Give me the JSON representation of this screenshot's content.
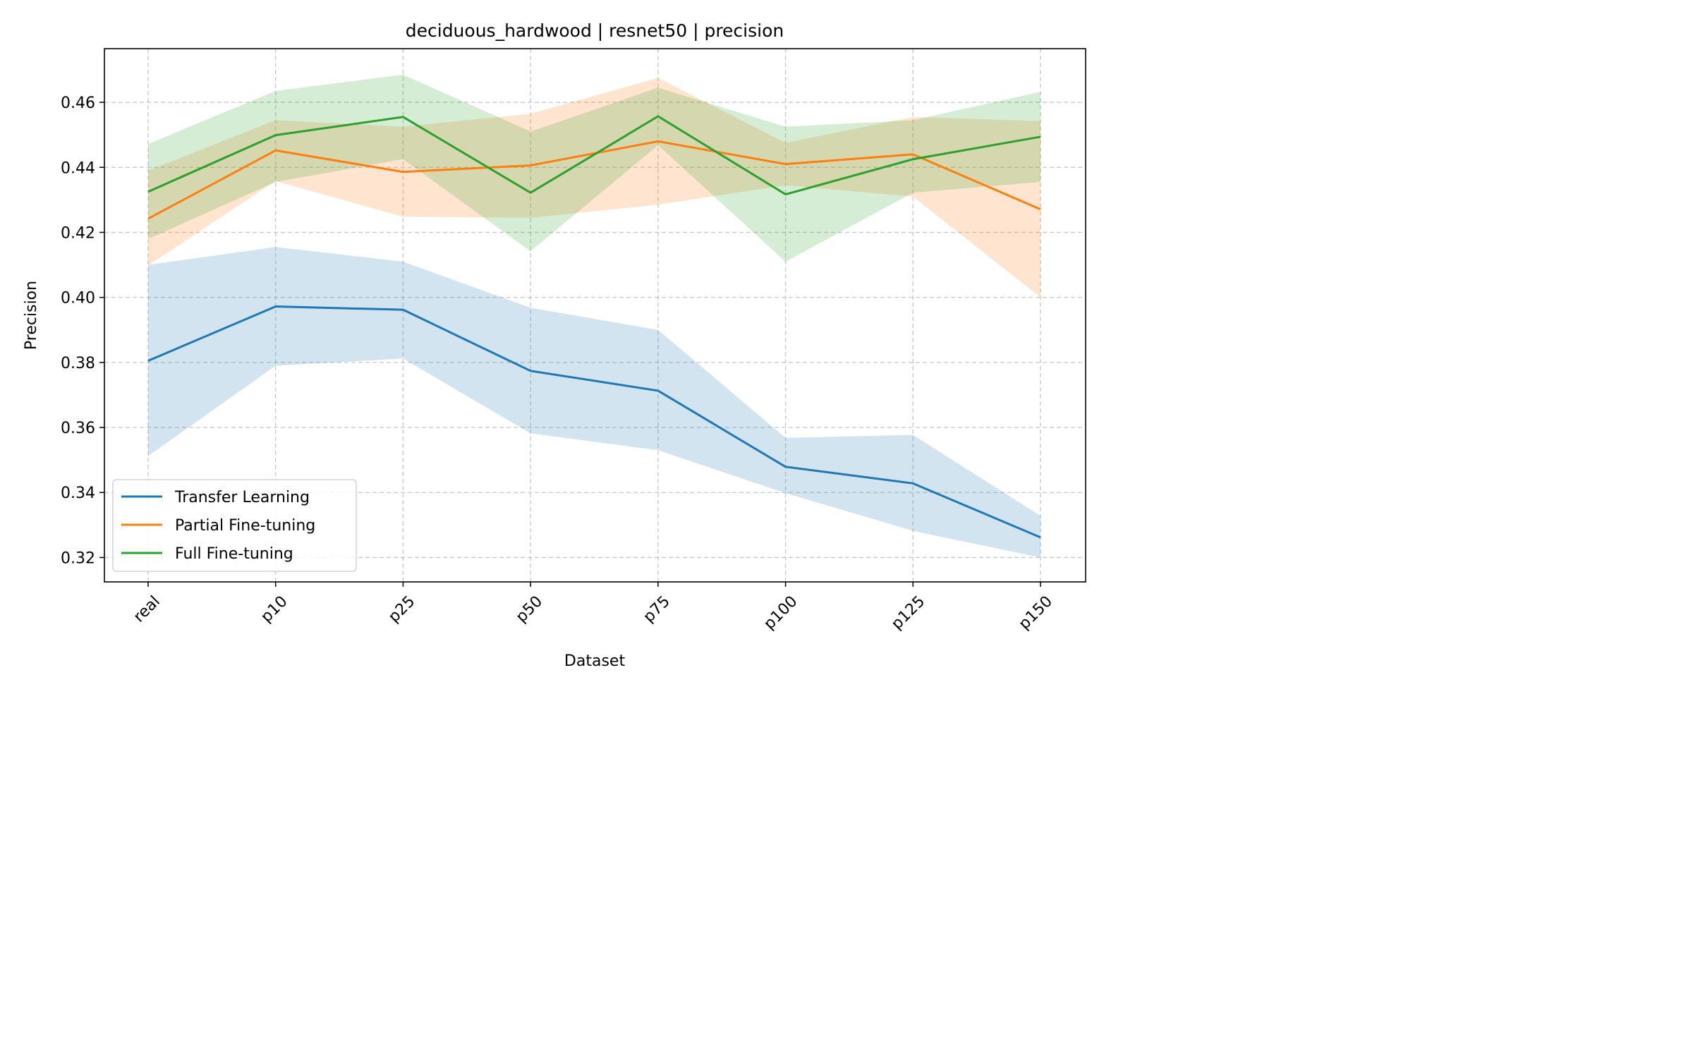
{
  "chart_data": {
    "type": "line",
    "title": "deciduous_hardwood | resnet50 | precision",
    "xlabel": "Dataset",
    "ylabel": "Precision",
    "categories": [
      "real",
      "p10",
      "p25",
      "p50",
      "p75",
      "p100",
      "p125",
      "p150"
    ],
    "ylim": [
      0.3125,
      0.4765
    ],
    "yticks": [
      0.32,
      0.34,
      0.36,
      0.38,
      0.4,
      0.42,
      0.44,
      0.46
    ],
    "ytick_labels": [
      "0.32",
      "0.34",
      "0.36",
      "0.38",
      "0.40",
      "0.42",
      "0.44",
      "0.46"
    ],
    "grid": true,
    "legend_position": "lower-left",
    "series": [
      {
        "name": "Transfer Learning",
        "color": "#1f77b4",
        "values": [
          0.3805,
          0.3972,
          0.3962,
          0.3774,
          0.3713,
          0.3479,
          0.3428,
          0.3262
        ],
        "lower": [
          0.3512,
          0.379,
          0.3812,
          0.3582,
          0.353,
          0.3398,
          0.3282,
          0.32
        ],
        "upper": [
          0.41,
          0.4155,
          0.411,
          0.3968,
          0.39,
          0.3568,
          0.3577,
          0.3328
        ]
      },
      {
        "name": "Partial Fine-tuning",
        "color": "#ff7f0e",
        "values": [
          0.4242,
          0.4452,
          0.4386,
          0.4406,
          0.448,
          0.441,
          0.444,
          0.4271
        ],
        "lower": [
          0.4098,
          0.4358,
          0.4248,
          0.4245,
          0.4285,
          0.4345,
          0.431,
          0.4
        ],
        "upper": [
          0.439,
          0.4545,
          0.4525,
          0.4565,
          0.4675,
          0.4475,
          0.4555,
          0.4542
        ]
      },
      {
        "name": "Full Fine-tuning",
        "color": "#2ca02c",
        "values": [
          0.4325,
          0.4499,
          0.4555,
          0.4322,
          0.4557,
          0.4317,
          0.4425,
          0.4494
        ],
        "lower": [
          0.418,
          0.4355,
          0.4425,
          0.4142,
          0.4468,
          0.411,
          0.4322,
          0.4355
        ],
        "upper": [
          0.4472,
          0.4635,
          0.4685,
          0.451,
          0.4645,
          0.4525,
          0.4545,
          0.4632
        ]
      }
    ]
  }
}
